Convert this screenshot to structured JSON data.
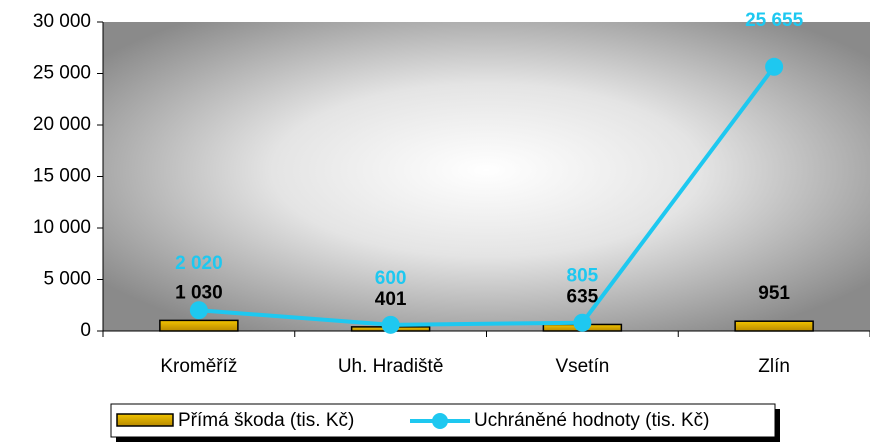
{
  "chart_data": {
    "type": "bar",
    "categories": [
      "Kroměříž",
      "Uh. Hradiště",
      "Vsetín",
      "Zlín"
    ],
    "series": [
      {
        "name": "Přímá škoda (tis. Kč)",
        "type": "bar",
        "color": "#d9a800",
        "values": [
          1030,
          401,
          635,
          951
        ],
        "value_labels": [
          "1 030",
          "401",
          "635",
          "951"
        ]
      },
      {
        "name": "Uchráněné hodnoty (tis. Kč)",
        "type": "line",
        "color": "#1ec8f0",
        "values": [
          2020,
          600,
          805,
          25655
        ],
        "value_labels": [
          "2 020",
          "600",
          "805",
          "25 655"
        ]
      }
    ],
    "ylim": [
      0,
      30000
    ],
    "yticks": [
      0,
      {
        "value": 5000,
        "label": "5 000"
      },
      {
        "value": 10000,
        "label": "10 000"
      },
      {
        "value": 15000,
        "label": "15 000"
      },
      {
        "value": 20000,
        "label": "20 000"
      },
      {
        "value": 25000,
        "label": "25 000"
      },
      {
        "value": 30000,
        "label": "30 000"
      }
    ],
    "legend": "bottom"
  }
}
